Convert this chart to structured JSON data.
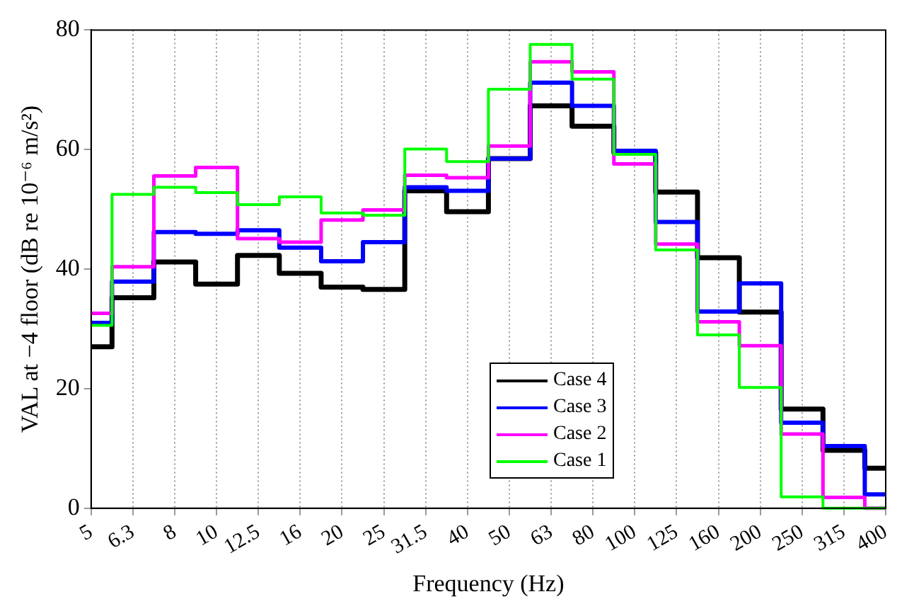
{
  "chart_data": {
    "type": "step",
    "xlabel": "Frequency (Hz)",
    "ylabel": "VAL at −4 floor (dB re 10⁻⁶ m/s²)",
    "categories": [
      "5",
      "6.3",
      "8",
      "10",
      "12.5",
      "16",
      "20",
      "25",
      "31.5",
      "40",
      "50",
      "63",
      "80",
      "100",
      "125",
      "160",
      "200",
      "250",
      "315",
      "400"
    ],
    "ylim": [
      0,
      80
    ],
    "yticks": [
      0,
      20,
      40,
      60,
      80
    ],
    "grid": "x",
    "legend": "bottom",
    "marker": "none",
    "line_style": "solid",
    "series": [
      {
        "name": "Case 4",
        "color": "#000000",
        "values": [
          27,
          35.2,
          41.2,
          37.5,
          42.3,
          39.3,
          37.0,
          36.6,
          53.1,
          49.6,
          58.5,
          67.3,
          63.9,
          59.5,
          52.9,
          41.9,
          32.8,
          16.6,
          9.7,
          6.7
        ]
      },
      {
        "name": "Case 3",
        "color": "#0000ff",
        "values": [
          31.0,
          37.9,
          46.2,
          45.9,
          46.5,
          43.6,
          41.3,
          44.5,
          53.7,
          53.1,
          58.5,
          71.2,
          67.3,
          59.8,
          47.9,
          32.9,
          37.6,
          14.3,
          10.4,
          2.3
        ]
      },
      {
        "name": "Case 2",
        "color": "#ff00ff",
        "values": [
          32.6,
          40.4,
          55.6,
          57.0,
          45.1,
          44.5,
          48.2,
          49.9,
          55.7,
          55.3,
          60.6,
          74.7,
          73.0,
          57.6,
          44.2,
          31.2,
          27.2,
          12.4,
          1.8,
          0
        ]
      },
      {
        "name": "Case 1",
        "color": "#00ff00",
        "values": [
          30.6,
          52.5,
          53.7,
          52.8,
          50.8,
          52.1,
          49.4,
          49.0,
          60.1,
          58.0,
          70.1,
          77.6,
          71.8,
          59.2,
          43.2,
          29.0,
          20.2,
          1.9,
          0,
          0
        ]
      }
    ]
  }
}
